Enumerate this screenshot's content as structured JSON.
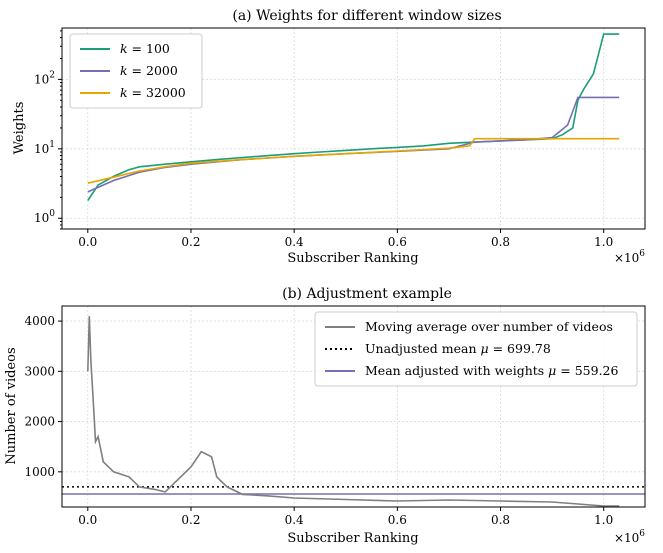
{
  "chart_data": [
    {
      "type": "line",
      "title": "(a) Weights for different window sizes",
      "xlabel": "Subscriber Ranking",
      "ylabel": "Weights",
      "x_exponent_label": "×10^6",
      "xlim": [
        -0.05,
        1.08
      ],
      "ylim": [
        0.7,
        550
      ],
      "yscale": "log",
      "x_ticks": [
        0.0,
        0.2,
        0.4,
        0.6,
        0.8,
        1.0
      ],
      "x_tick_labels": [
        "0.0",
        "0.2",
        "0.4",
        "0.6",
        "0.8",
        "1.0"
      ],
      "y_ticks": [
        1,
        10,
        100
      ],
      "y_tick_labels": [
        "10^0",
        "10^1",
        "10^2"
      ],
      "grid": true,
      "legend_position": "top-left",
      "series": [
        {
          "name": "k = 100",
          "color": "#1a9e77",
          "x": [
            0.0,
            0.02,
            0.05,
            0.08,
            0.1,
            0.15,
            0.2,
            0.25,
            0.3,
            0.35,
            0.4,
            0.45,
            0.5,
            0.55,
            0.6,
            0.65,
            0.7,
            0.75,
            0.8,
            0.85,
            0.9,
            0.92,
            0.94,
            0.95,
            0.96,
            0.98,
            1.0,
            1.03
          ],
          "y": [
            1.8,
            3.0,
            4.0,
            5.0,
            5.5,
            6.0,
            6.5,
            7.0,
            7.5,
            8.0,
            8.5,
            9.0,
            9.5,
            10.0,
            10.5,
            11.0,
            12.0,
            12.5,
            13.0,
            13.5,
            14.0,
            16.0,
            20.0,
            50.0,
            70.0,
            120.0,
            450.0,
            450.0
          ]
        },
        {
          "name": "k = 2000",
          "color": "#7570b3",
          "x": [
            0.0,
            0.05,
            0.1,
            0.15,
            0.2,
            0.3,
            0.4,
            0.5,
            0.6,
            0.7,
            0.75,
            0.8,
            0.85,
            0.9,
            0.93,
            0.95,
            1.0,
            1.03
          ],
          "y": [
            2.4,
            3.5,
            4.6,
            5.4,
            6.0,
            7.0,
            7.8,
            8.5,
            9.2,
            10.0,
            12.5,
            13.0,
            13.5,
            14.5,
            22.0,
            55.0,
            55.0,
            55.0
          ]
        },
        {
          "name": "k = 32000",
          "color": "#e6a500",
          "x": [
            0.0,
            0.05,
            0.1,
            0.15,
            0.2,
            0.3,
            0.4,
            0.5,
            0.6,
            0.7,
            0.74,
            0.75,
            0.8,
            0.9,
            0.95,
            1.03
          ],
          "y": [
            3.2,
            3.9,
            4.8,
            5.5,
            6.2,
            7.0,
            7.8,
            8.5,
            9.3,
            10.2,
            11.0,
            14.0,
            14.0,
            14.0,
            14.0,
            14.0
          ]
        }
      ]
    },
    {
      "type": "line",
      "title": "(b) Adjustment example",
      "xlabel": "Subscriber Ranking",
      "ylabel": "Number of videos",
      "x_exponent_label": "×10^6",
      "xlim": [
        -0.05,
        1.08
      ],
      "ylim": [
        300,
        4300
      ],
      "x_ticks": [
        0.0,
        0.2,
        0.4,
        0.6,
        0.8,
        1.0
      ],
      "x_tick_labels": [
        "0.0",
        "0.2",
        "0.4",
        "0.6",
        "0.8",
        "1.0"
      ],
      "y_ticks": [
        1000,
        2000,
        3000,
        4000
      ],
      "y_tick_labels": [
        "1000",
        "2000",
        "3000",
        "4000"
      ],
      "grid": true,
      "legend_position": "top-right",
      "series": [
        {
          "name": "Moving average over number of videos",
          "color": "#7f7f7f",
          "x": [
            0.0,
            0.003,
            0.006,
            0.01,
            0.015,
            0.02,
            0.03,
            0.05,
            0.08,
            0.1,
            0.13,
            0.15,
            0.18,
            0.2,
            0.22,
            0.24,
            0.25,
            0.27,
            0.3,
            0.35,
            0.4,
            0.5,
            0.6,
            0.7,
            0.8,
            0.9,
            1.0,
            1.03
          ],
          "y": [
            3000,
            4100,
            3200,
            2500,
            1600,
            1700,
            1200,
            1000,
            900,
            700,
            650,
            600,
            900,
            1100,
            1400,
            1300,
            900,
            700,
            550,
            520,
            480,
            450,
            420,
            440,
            420,
            400,
            320,
            320
          ]
        }
      ],
      "hlines": [
        {
          "name": "Unadjusted mean μ = 699.78",
          "y": 699.78,
          "color": "#000000",
          "style": "dotted"
        },
        {
          "name": "Mean adjusted with weights μ = 559.26",
          "y": 559.26,
          "color": "#7570b3",
          "style": "solid"
        }
      ]
    }
  ]
}
